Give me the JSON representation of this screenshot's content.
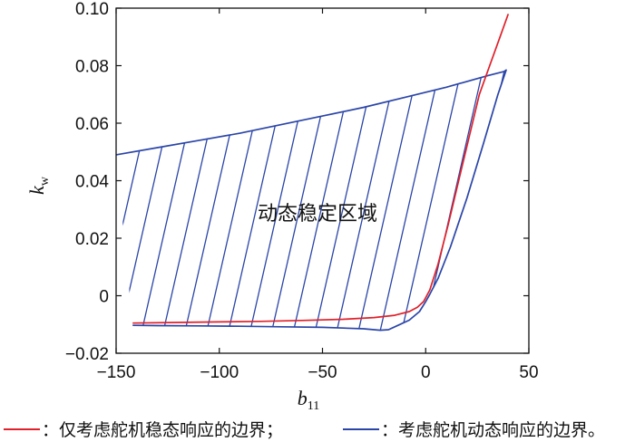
{
  "chart_data": {
    "type": "line",
    "xlabel": "b",
    "xlabel_subscript": "11",
    "ylabel": "k",
    "ylabel_subscript": "w",
    "xlim": [
      -150,
      50
    ],
    "ylim": [
      -0.02,
      0.1
    ],
    "xticks": [
      -150,
      -100,
      -50,
      0,
      50
    ],
    "xtick_labels": [
      "−150",
      "−100",
      "−50",
      "0",
      "50"
    ],
    "yticks": [
      -0.02,
      0,
      0.02,
      0.04,
      0.06,
      0.08,
      0.1
    ],
    "ytick_labels": [
      "−0.02",
      "0",
      "0.02",
      "0.04",
      "0.06",
      "0.08",
      "0.10"
    ],
    "region_label": "动态稳定区域",
    "colors": {
      "static": "#e0202a",
      "dynamic": "#2a45a8"
    },
    "series": [
      {
        "name": "仅考虑舵机稳态响应的边界",
        "color": "#e0202a",
        "x": [
          -142,
          -120,
          -100,
          -80,
          -60,
          -40,
          -25,
          -15,
          -8,
          -4,
          -1,
          2,
          6,
          11,
          16,
          21,
          26,
          31,
          36,
          40
        ],
        "y": [
          -0.0095,
          -0.0093,
          -0.0091,
          -0.0089,
          -0.0086,
          -0.0082,
          -0.0076,
          -0.0068,
          -0.0055,
          -0.004,
          -0.002,
          0.002,
          0.011,
          0.025,
          0.04,
          0.055,
          0.07,
          0.08,
          0.09,
          0.098
        ]
      },
      {
        "name": "考虑舵机动态响应的边界",
        "color": "#2a45a8",
        "x": [
          -150,
          -130,
          -110,
          -90,
          -70,
          -50,
          -30,
          -10,
          10,
          30,
          38,
          39,
          35,
          28,
          20,
          12,
          6,
          2,
          0,
          -3,
          -8,
          -14,
          -18,
          -22,
          -30,
          -50,
          -70,
          -90,
          -110,
          -130,
          -142
        ],
        "y": [
          0.049,
          0.0515,
          0.054,
          0.0565,
          0.0595,
          0.0625,
          0.0655,
          0.069,
          0.0725,
          0.0765,
          0.078,
          0.0785,
          0.07,
          0.053,
          0.034,
          0.017,
          0.006,
          0.0005,
          -0.002,
          -0.0055,
          -0.0085,
          -0.0105,
          -0.0118,
          -0.012,
          -0.0115,
          -0.011,
          -0.0108,
          -0.0106,
          -0.0105,
          -0.0104,
          -0.0103
        ]
      }
    ],
    "legend": {
      "static_text": "：仅考虑舵机稳态响应的边界；",
      "dynamic_text": "：考虑舵机动态响应的边界。"
    }
  }
}
